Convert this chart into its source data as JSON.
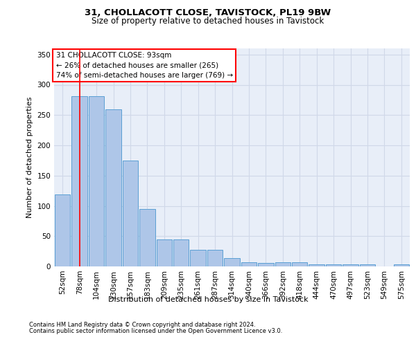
{
  "title1": "31, CHOLLACOTT CLOSE, TAVISTOCK, PL19 9BW",
  "title2": "Size of property relative to detached houses in Tavistock",
  "xlabel": "Distribution of detached houses by size in Tavistock",
  "ylabel": "Number of detached properties",
  "categories": [
    "52sqm",
    "78sqm",
    "104sqm",
    "130sqm",
    "157sqm",
    "183sqm",
    "209sqm",
    "235sqm",
    "261sqm",
    "287sqm",
    "314sqm",
    "340sqm",
    "366sqm",
    "392sqm",
    "418sqm",
    "444sqm",
    "470sqm",
    "497sqm",
    "523sqm",
    "549sqm",
    "575sqm"
  ],
  "values": [
    119,
    281,
    281,
    260,
    175,
    95,
    45,
    45,
    28,
    28,
    14,
    7,
    6,
    7,
    7,
    4,
    3,
    3,
    3,
    0,
    3
  ],
  "bar_color": "#aec6e8",
  "bar_edge_color": "#5a9fd4",
  "grid_color": "#d0d8e8",
  "background_color": "#e8eef8",
  "red_line_x": 1.0,
  "annotation_box_text": "31 CHOLLACOTT CLOSE: 93sqm\n← 26% of detached houses are smaller (265)\n74% of semi-detached houses are larger (769) →",
  "footnote1": "Contains HM Land Registry data © Crown copyright and database right 2024.",
  "footnote2": "Contains public sector information licensed under the Open Government Licence v3.0.",
  "ylim": [
    0,
    360
  ],
  "yticks": [
    0,
    50,
    100,
    150,
    200,
    250,
    300,
    350
  ],
  "title1_fontsize": 9.5,
  "title2_fontsize": 8.5,
  "ylabel_fontsize": 8,
  "xlabel_fontsize": 8,
  "tick_fontsize": 7.5,
  "annot_fontsize": 7.5
}
